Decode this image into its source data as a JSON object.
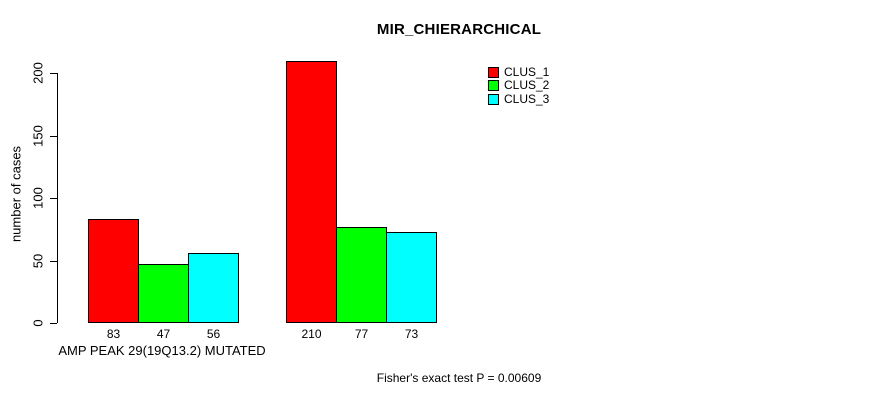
{
  "chart_data": {
    "type": "bar",
    "title": "MIR_CHIERARCHICAL",
    "xlabel": "AMP PEAK 29(19Q13.2) MUTATED",
    "ylabel": "number of cases",
    "yticks": [
      0,
      50,
      100,
      150,
      200
    ],
    "ylim": [
      0,
      210
    ],
    "grid": false,
    "legend_position": "top-right",
    "bar_value_labels": true,
    "background_color": "#ffffff",
    "bar_border_color": "#000000",
    "series": [
      {
        "name": "CLUS_1",
        "color": "#ff0000",
        "values": [
          83,
          210
        ]
      },
      {
        "name": "CLUS_2",
        "color": "#00ff00",
        "values": [
          47,
          77
        ]
      },
      {
        "name": "CLUS_3",
        "color": "#00ffff",
        "values": [
          56,
          73
        ]
      }
    ],
    "annotation": "Fisher's exact test P = 0.00609"
  }
}
